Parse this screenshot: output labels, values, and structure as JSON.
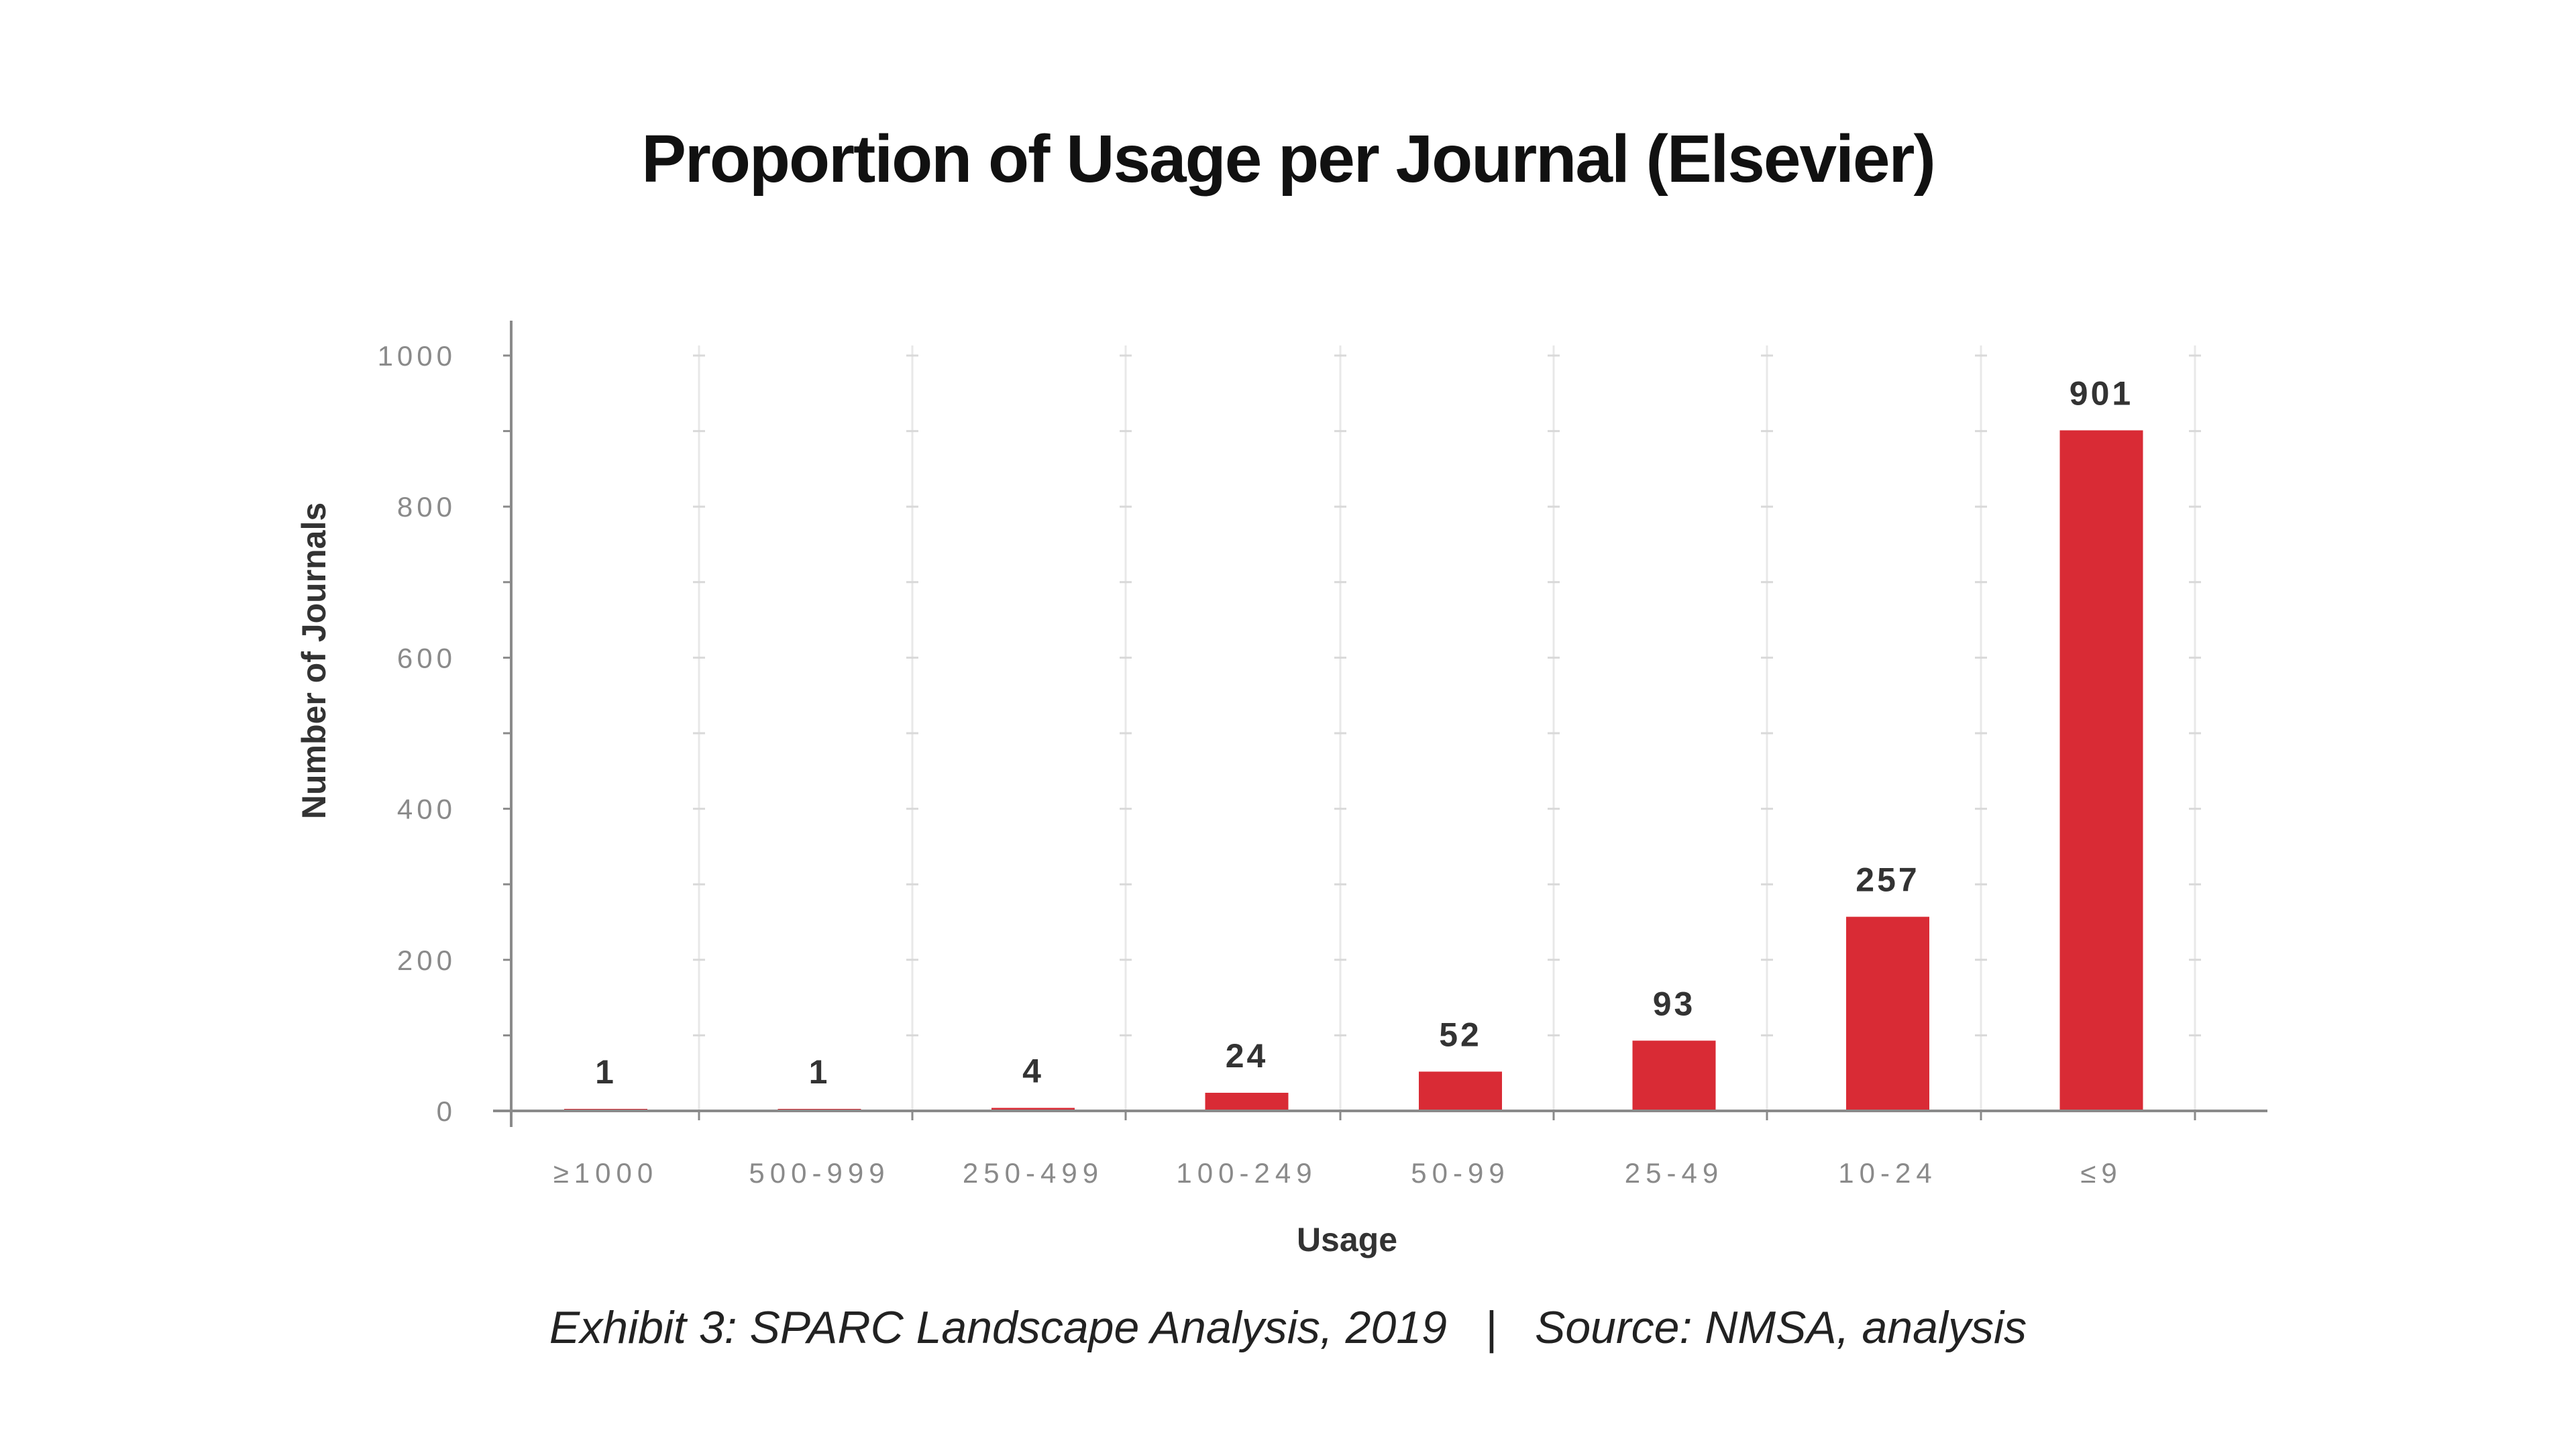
{
  "chart_data": {
    "type": "bar",
    "title": "Proportion of Usage per Journal (Elsevier)",
    "xlabel": "Usage",
    "ylabel": "Number of Journals",
    "categories": [
      "≥1000",
      "500-999",
      "250-499",
      "100-249",
      "50-99",
      "25-49",
      "10-24",
      "≤9"
    ],
    "values": [
      1,
      1,
      4,
      24,
      52,
      93,
      257,
      901
    ],
    "ylim": [
      0,
      1000
    ],
    "yticks": [
      0,
      200,
      400,
      600,
      800,
      1000
    ],
    "grid": true,
    "bar_color": "#d92b35",
    "data_labels": true
  },
  "caption": {
    "left": "Exhibit 3: SPARC Landscape Analysis, 2019",
    "separator": "|",
    "right": "Source: NMSA, analysis"
  }
}
